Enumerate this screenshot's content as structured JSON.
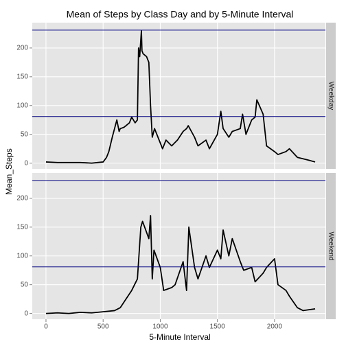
{
  "title": "Mean of Steps by Class Day and by 5-Minute Interval",
  "xlabel": "5-Minute Interval",
  "ylabel": "Mean_Steps",
  "chart_data": [
    {
      "type": "line",
      "facet": "Weekday",
      "color": "#000000",
      "hline_color": "#000080",
      "x": [
        0,
        100,
        200,
        300,
        400,
        500,
        530,
        550,
        580,
        600,
        620,
        640,
        650,
        680,
        700,
        730,
        750,
        780,
        800,
        810,
        820,
        835,
        840,
        850,
        880,
        900,
        915,
        930,
        950,
        1000,
        1020,
        1050,
        1100,
        1150,
        1200,
        1230,
        1245,
        1300,
        1330,
        1400,
        1430,
        1500,
        1530,
        1550,
        1600,
        1630,
        1700,
        1720,
        1750,
        1800,
        1830,
        1845,
        1900,
        1930,
        2000,
        2030,
        2100,
        2130,
        2200,
        2300,
        2355
      ],
      "values": [
        2,
        1,
        1,
        1,
        0,
        2,
        10,
        20,
        45,
        60,
        75,
        55,
        60,
        62,
        65,
        70,
        80,
        70,
        75,
        200,
        185,
        230,
        195,
        190,
        185,
        175,
        100,
        45,
        60,
        35,
        25,
        40,
        30,
        40,
        55,
        60,
        65,
        45,
        30,
        40,
        25,
        50,
        90,
        60,
        45,
        55,
        60,
        85,
        50,
        75,
        80,
        110,
        85,
        30,
        20,
        15,
        20,
        25,
        10,
        5,
        2
      ],
      "hlines": [
        231,
        81
      ],
      "xlim": [
        -120,
        2445
      ],
      "ylim": [
        -10,
        244
      ],
      "xticks": [
        0,
        500,
        1000,
        1500,
        2000
      ],
      "yticks": [
        0,
        50,
        100,
        150,
        200
      ],
      "grid": true
    },
    {
      "type": "line",
      "facet": "Weekend",
      "color": "#000000",
      "hline_color": "#000080",
      "x": [
        0,
        100,
        200,
        300,
        400,
        500,
        600,
        650,
        700,
        750,
        800,
        830,
        845,
        900,
        915,
        930,
        945,
        1000,
        1030,
        1100,
        1130,
        1200,
        1230,
        1250,
        1300,
        1330,
        1400,
        1430,
        1500,
        1530,
        1550,
        1600,
        1630,
        1700,
        1730,
        1800,
        1830,
        1900,
        1930,
        2000,
        2030,
        2100,
        2130,
        2200,
        2250,
        2355
      ],
      "values": [
        0,
        1,
        0,
        2,
        1,
        3,
        5,
        10,
        25,
        40,
        60,
        150,
        160,
        130,
        170,
        60,
        110,
        80,
        40,
        45,
        50,
        90,
        40,
        150,
        80,
        60,
        100,
        80,
        110,
        95,
        145,
        100,
        130,
        90,
        75,
        80,
        55,
        70,
        80,
        95,
        50,
        40,
        30,
        10,
        5,
        8
      ],
      "hlines": [
        231,
        81
      ],
      "xlim": [
        -120,
        2445
      ],
      "ylim": [
        -10,
        244
      ],
      "xticks": [
        0,
        500,
        1000,
        1500,
        2000
      ],
      "yticks": [
        0,
        50,
        100,
        150,
        200
      ],
      "grid": true
    }
  ]
}
